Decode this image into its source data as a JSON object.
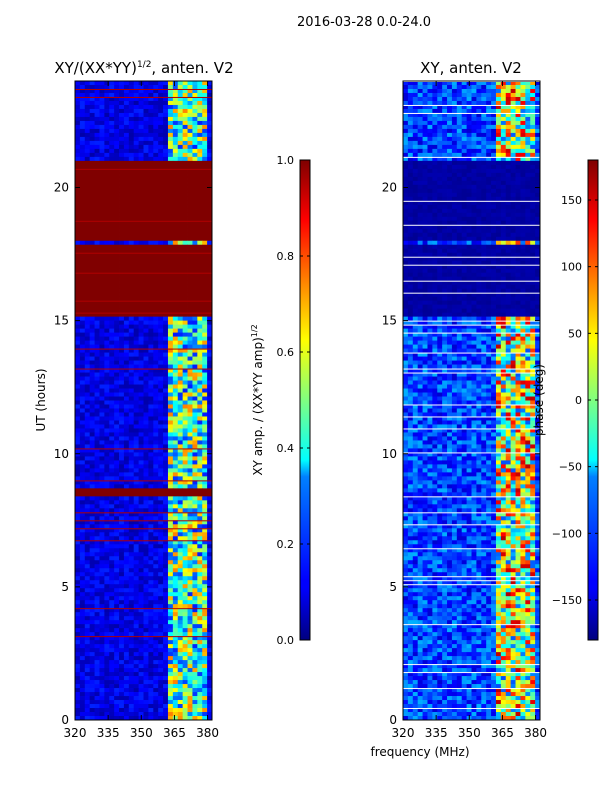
{
  "figure": {
    "suptitle": "2016-03-28 0.0-24.0",
    "xlabel": "frequency (MHz)"
  },
  "colors": {
    "jet_dark_blue": "#00007f",
    "jet_blue": "#0000ff",
    "jet_cyan": "#00ffff",
    "jet_yellow": "#ffff00",
    "jet_red": "#ff0000",
    "jet_dark_red": "#7f0000"
  },
  "chart_data": [
    {
      "type": "heatmap",
      "id": "amp",
      "title_prefix": "XY/(XX*YY)",
      "title_exp": "1/2",
      "title_suffix": ", anten. V2",
      "xlabel": "",
      "ylabel": "UT (hours)",
      "xlim": [
        320,
        382
      ],
      "ylim": [
        0,
        24
      ],
      "xticks": [
        320,
        335,
        350,
        365,
        380
      ],
      "yticks": [
        0,
        5,
        10,
        15,
        20
      ],
      "colorbar": {
        "label_prefix": "XY amp. / (XX*YY amp)",
        "label_exp": "1/2",
        "range": [
          0.0,
          1.0
        ],
        "ticks": [
          "0.0",
          "0.2",
          "0.4",
          "0.6",
          "0.8",
          "1.0"
        ]
      },
      "saturated_bands_hours": [
        [
          15.2,
          17.8
        ],
        [
          17.95,
          21.0
        ],
        [
          8.45,
          8.75
        ]
      ]
    },
    {
      "type": "heatmap",
      "id": "phase",
      "title": "XY, anten. V2",
      "xlabel": "",
      "ylabel": "",
      "xlim": [
        320,
        382
      ],
      "ylim": [
        0,
        24
      ],
      "xticks": [
        320,
        335,
        350,
        365,
        380
      ],
      "yticks": [
        0,
        5,
        10,
        15,
        20
      ],
      "colorbar": {
        "label": "phase (deg)",
        "range": [
          -180,
          180
        ],
        "ticks": [
          "150",
          "100",
          "50",
          "0",
          "−50",
          "−100",
          "−150"
        ]
      },
      "low_bands_hours": [
        [
          15.2,
          17.8
        ],
        [
          17.95,
          21.0
        ]
      ]
    }
  ]
}
